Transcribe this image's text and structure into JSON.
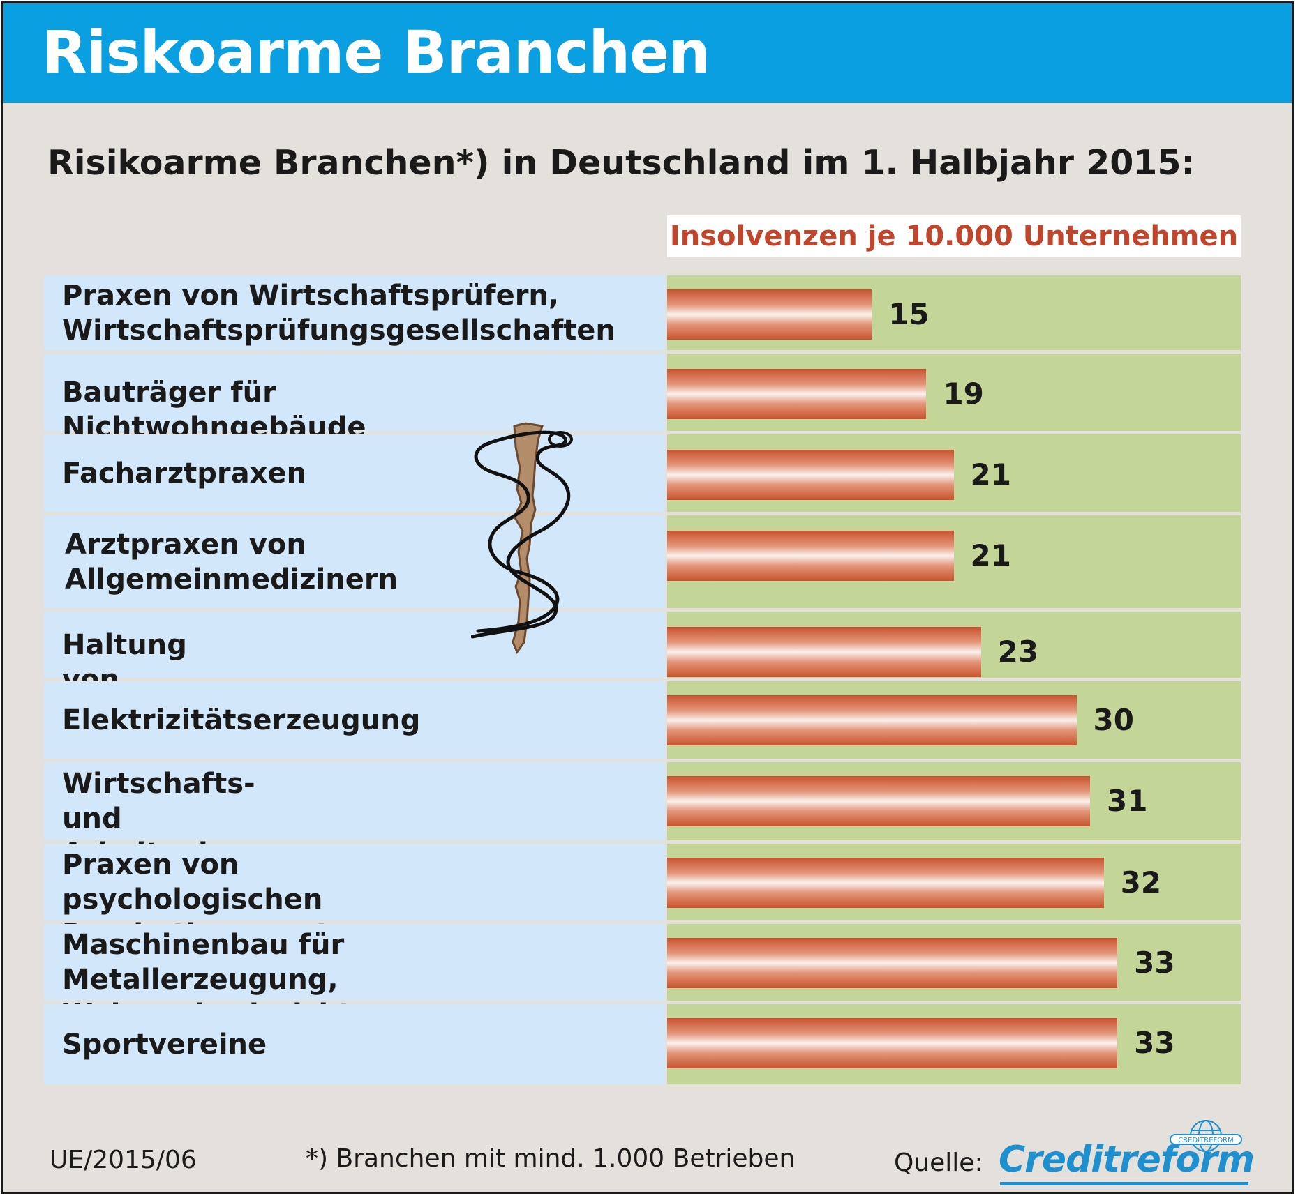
{
  "header": {
    "title": "Riskoarme Branchen"
  },
  "subtitle": "Risikoarme Branchen*) in Deutschland im 1. Halbjahr 2015:",
  "colors": {
    "header_bg": "#0a9fe0",
    "label_bg": "#d2e8fa",
    "plot_bg": "#c4d598",
    "bar": "#c8532f",
    "unit_text": "#c0452a",
    "brand": "#1e8fcf"
  },
  "chart_data": {
    "type": "bar",
    "orientation": "horizontal",
    "title": "Risikoarme Branchen*) in Deutschland im 1. Halbjahr 2015:",
    "unit_label": "Insolvenzen je 10.000 Unternehmen",
    "categories": [
      "Praxen von Wirtschaftsprüfern,\nWirtschaftsprüfungsgesellschaften",
      "Bauträger für Nichtwohngebäude",
      "Facharztpraxen",
      "Arztpraxen von\nAllgemeinmedizinern",
      "Haltung von Schweinen",
      "Elektrizitätserzeugung",
      "Wirtschafts- und Arbeitgeber-\nverbände",
      "Praxen von psychologischen\nPsychotherapeuten",
      "Maschinenbau für Metallerzeugung,\nWalzwerkseinrichtungen, Gießwerke",
      "Sportvereine"
    ],
    "values": [
      15,
      19,
      21,
      21,
      23,
      30,
      31,
      32,
      33,
      33
    ],
    "xlim": [
      0,
      41
    ],
    "grid": false,
    "legend": "none"
  },
  "footer": {
    "code": "UE/2015/06",
    "note": "*) Branchen mit mind. 1.000 Betrieben",
    "source_label": "Quelle:",
    "logo_text": "Creditreform",
    "logo_small_text": "CREDITREFORM"
  },
  "icons": {
    "illustration": "aesculapian-staff-icon",
    "logo_mark": "globe-icon"
  }
}
